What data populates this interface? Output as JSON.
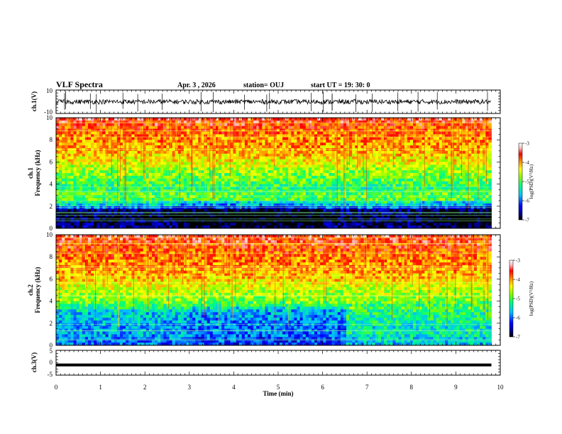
{
  "header": {
    "title": "VLF Spectra",
    "date": "Apr. 3 , 2026",
    "station": "station= OUJ",
    "start": "start  UT =   19: 30: 0"
  },
  "chart_data": [
    {
      "type": "line",
      "panel": "ch1-waveform",
      "ylabel": "ch.1(V)",
      "ylim": [
        -10,
        10
      ],
      "y_ticks": [
        "10",
        "-10"
      ],
      "xlim": [
        0,
        10
      ],
      "series_level": 0,
      "color": "#000000"
    },
    {
      "type": "heatmap",
      "panel": "ch1-spectrogram",
      "ylabel": "ch.1\nFrequency (kHz)",
      "ylim": [
        0,
        10
      ],
      "y_ticks": [
        "0",
        "2",
        "4",
        "6",
        "8",
        "10"
      ],
      "xlim": [
        0,
        10
      ],
      "data_end_min": 9.8,
      "profile": [
        [
          0.0,
          -6.6
        ],
        [
          0.6,
          -6.8
        ],
        [
          1.0,
          -6.9
        ],
        [
          1.6,
          -6.7
        ],
        [
          2.0,
          -5.7
        ],
        [
          2.6,
          -5.0
        ],
        [
          3.0,
          -4.9
        ],
        [
          3.6,
          -5.2
        ],
        [
          4.0,
          -5.0
        ],
        [
          5.0,
          -4.8
        ],
        [
          6.0,
          -4.4
        ],
        [
          7.0,
          -4.1
        ],
        [
          8.0,
          -4.0
        ],
        [
          9.0,
          -3.8
        ],
        [
          10.0,
          -3.5
        ]
      ],
      "colorbar": {
        "label": "log(PSD)(V²/Hz)",
        "ticks": [
          "-3",
          "-4",
          "-5",
          "-6",
          "-7"
        ],
        "range": [
          -7,
          -3
        ]
      }
    },
    {
      "type": "heatmap",
      "panel": "ch2-spectrogram",
      "ylabel": "ch.2\nFrequency (kHz)",
      "ylim": [
        0,
        10
      ],
      "y_ticks": [
        "0",
        "2",
        "4",
        "6",
        "8",
        "10"
      ],
      "xlim": [
        0,
        10
      ],
      "data_end_min": 9.8,
      "profile": [
        [
          0.0,
          -6.0
        ],
        [
          0.6,
          -5.9
        ],
        [
          1.0,
          -5.7
        ],
        [
          1.6,
          -5.8
        ],
        [
          2.0,
          -5.7
        ],
        [
          2.6,
          -5.6
        ],
        [
          3.0,
          -5.6
        ],
        [
          3.6,
          -5.1
        ],
        [
          4.0,
          -4.8
        ],
        [
          5.0,
          -4.6
        ],
        [
          6.0,
          -4.2
        ],
        [
          7.0,
          -4.0
        ],
        [
          8.0,
          -3.9
        ],
        [
          9.0,
          -3.7
        ],
        [
          10.0,
          -3.5
        ]
      ],
      "colorbar": {
        "label": "log(PSD)(V²/Hz)",
        "ticks": [
          "-3",
          "-4",
          "-5",
          "-6",
          "-7"
        ],
        "range": [
          -7,
          -3
        ]
      }
    },
    {
      "type": "line",
      "panel": "ch3-waveform",
      "ylabel": "ch.3(V)",
      "ylim": [
        -5,
        5
      ],
      "y_ticks": [
        "5",
        "0",
        "-5"
      ],
      "xlim": [
        0,
        10
      ],
      "series_level": -0.9,
      "color": "#000000"
    }
  ],
  "x_axis": {
    "label": "Time (min)",
    "ticks": [
      "0",
      "1",
      "2",
      "3",
      "4",
      "5",
      "6",
      "7",
      "8",
      "9",
      "10"
    ]
  },
  "colormap": [
    "#000000",
    "#00008b",
    "#0000ff",
    "#00bfff",
    "#00ff80",
    "#7fff00",
    "#ffff00",
    "#ff8c00",
    "#ff0000",
    "#ffc0c0",
    "#ffffff"
  ]
}
